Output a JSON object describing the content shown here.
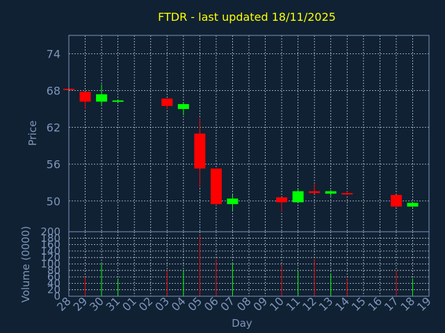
{
  "chart_data": {
    "type": "candlestick",
    "title": "FTDR - last updated 18/11/2025",
    "price_panel": {
      "ylabel": "Price",
      "ylim": [
        45,
        77
      ],
      "yticks": [
        50,
        56,
        62,
        68,
        74
      ],
      "grid": true
    },
    "volume_panel": {
      "ylabel": "Volume (0000)",
      "ylim": [
        0,
        200
      ],
      "yticks": [
        0,
        20,
        40,
        60,
        80,
        100,
        120,
        140,
        160,
        180,
        200
      ],
      "grid": true
    },
    "xlabel": "Day",
    "x_ticks": [
      "28",
      "29",
      "30",
      "31",
      "01",
      "02",
      "03",
      "04",
      "05",
      "06",
      "07",
      "08",
      "09",
      "10",
      "11",
      "12",
      "13",
      "14",
      "15",
      "16",
      "17",
      "18",
      "19"
    ],
    "up_color": "#00ff00",
    "down_color": "#ff0000",
    "candles": [
      {
        "day": "28",
        "open": 68.3,
        "high": 68.3,
        "low": 68.0,
        "close": 68.1,
        "volume": 0
      },
      {
        "day": "29",
        "open": 67.8,
        "high": 67.8,
        "low": 65.0,
        "close": 66.2,
        "volume": 60
      },
      {
        "day": "30",
        "open": 66.2,
        "high": 69.0,
        "low": 65.5,
        "close": 67.4,
        "volume": 100
      },
      {
        "day": "31",
        "open": 66.3,
        "high": 66.6,
        "low": 66.0,
        "close": 66.4,
        "volume": 55
      },
      {
        "day": "03",
        "open": 66.7,
        "high": 66.7,
        "low": 65.0,
        "close": 65.5,
        "volume": 80
      },
      {
        "day": "04",
        "open": 65.0,
        "high": 66.0,
        "low": 64.0,
        "close": 65.8,
        "volume": 80
      },
      {
        "day": "05",
        "open": 61.0,
        "high": 63.5,
        "low": 52.2,
        "close": 55.3,
        "volume": 190
      },
      {
        "day": "06",
        "open": 55.3,
        "high": 55.3,
        "low": 49.3,
        "close": 49.5,
        "volume": 115
      },
      {
        "day": "07",
        "open": 49.5,
        "high": 51.0,
        "low": 48.5,
        "close": 50.4,
        "volume": 105
      },
      {
        "day": "10",
        "open": 50.6,
        "high": 50.6,
        "low": 48.3,
        "close": 49.8,
        "volume": 95
      },
      {
        "day": "11",
        "open": 49.8,
        "high": 52.0,
        "low": 49.7,
        "close": 51.6,
        "volume": 80
      },
      {
        "day": "12",
        "open": 51.6,
        "high": 52.9,
        "low": 51.2,
        "close": 51.3,
        "volume": 115
      },
      {
        "day": "13",
        "open": 51.2,
        "high": 51.8,
        "low": 50.8,
        "close": 51.6,
        "volume": 70
      },
      {
        "day": "14",
        "open": 51.3,
        "high": 51.6,
        "low": 51.0,
        "close": 51.1,
        "volume": 55
      },
      {
        "day": "17",
        "open": 51.0,
        "high": 51.0,
        "low": 49.0,
        "close": 49.1,
        "volume": 80
      },
      {
        "day": "18",
        "open": 49.1,
        "high": 49.8,
        "low": 49.0,
        "close": 49.7,
        "volume": 55
      }
    ]
  }
}
